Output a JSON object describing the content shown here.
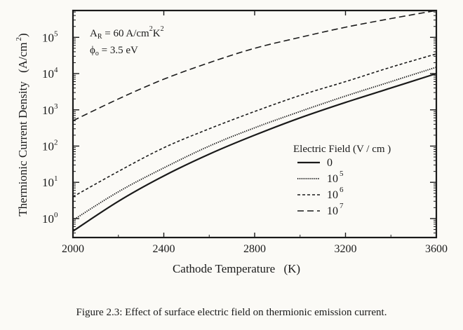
{
  "chart_data": {
    "type": "line",
    "xlabel": "Cathode Temperature",
    "xlabel_unit": "(K)",
    "ylabel": "Thermionic Current Density",
    "ylabel_unit": "(A/cm",
    "ylabel_unit_exp": "2",
    "ylabel_unit_close": ")",
    "xlim": [
      2000,
      3600
    ],
    "ylim": [
      0.3,
      550000
    ],
    "yscale": "log",
    "x_ticks": [
      2000,
      2400,
      2800,
      3200,
      3600
    ],
    "y_ticks": [
      {
        "base": "10",
        "exp": "0"
      },
      {
        "base": "10",
        "exp": "1"
      },
      {
        "base": "10",
        "exp": "2"
      },
      {
        "base": "10",
        "exp": "3"
      },
      {
        "base": "10",
        "exp": "4"
      },
      {
        "base": "10",
        "exp": "5"
      }
    ],
    "grid": false,
    "legend_position": "center-right",
    "legend_title": "Electric Field  (V / cm )",
    "annotations": {
      "ar_label": "A",
      "ar_sub": "R",
      "ar_value": " = 60 A/cm",
      "ar_exp1": "2",
      "ar_k": "K",
      "ar_exp2": "2",
      "phi_label": "ϕ",
      "phi_sub": "o",
      "phi_value": " = 3.5 eV"
    },
    "series": [
      {
        "name": "0",
        "name_exp": "",
        "style": "solid",
        "x": [
          2000,
          2200,
          2400,
          2600,
          2800,
          3000,
          3200,
          3400,
          3600
        ],
        "y": [
          0.45,
          3,
          15,
          60,
          200,
          600,
          1600,
          4000,
          10000
        ]
      },
      {
        "name": "10",
        "name_exp": "5",
        "style": "dotted",
        "x": [
          2000,
          2200,
          2400,
          2600,
          2800,
          3000,
          3200,
          3400,
          3600
        ],
        "y": [
          0.9,
          5.5,
          25,
          100,
          320,
          900,
          2400,
          6000,
          15000
        ]
      },
      {
        "name": "10",
        "name_exp": "6",
        "style": "short-dash",
        "x": [
          2000,
          2200,
          2400,
          2600,
          2800,
          3000,
          3200,
          3400,
          3600
        ],
        "y": [
          4,
          20,
          90,
          300,
          900,
          2500,
          6000,
          15000,
          35000
        ]
      },
      {
        "name": "10",
        "name_exp": "7",
        "style": "long-dash",
        "x": [
          2000,
          2200,
          2400,
          2600,
          2800,
          3000,
          3200,
          3400,
          3600
        ],
        "y": [
          500,
          2000,
          7000,
          20000,
          50000,
          100000,
          190000,
          330000,
          550000
        ]
      }
    ]
  },
  "caption": "Figure 2.3: Effect of surface electric field on thermionic emission current."
}
